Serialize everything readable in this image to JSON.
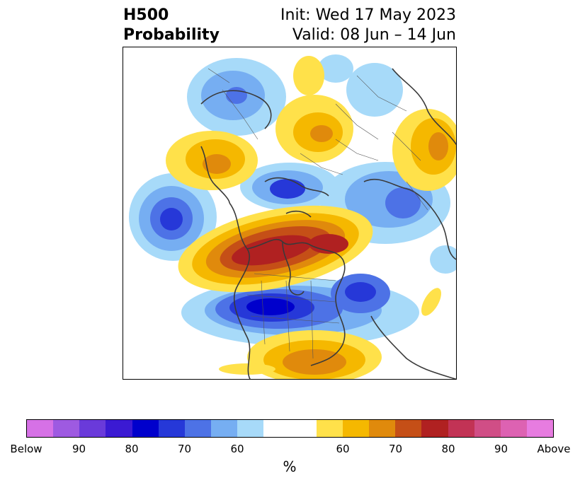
{
  "header": {
    "left_line1": "H500",
    "left_line2": "Probability",
    "right_line1": "Init: Wed 17 May 2023",
    "right_line2": "Valid: 08 Jun – 14 Jun"
  },
  "map": {
    "anomalies": [
      {
        "id": "below-north-pacific",
        "sign": "below",
        "levels": [
          60,
          70,
          80
        ]
      },
      {
        "id": "below-eastern-us",
        "sign": "below",
        "levels": [
          60,
          70,
          80,
          90
        ]
      },
      {
        "id": "below-north-atlantic",
        "sign": "below",
        "levels": [
          60,
          70
        ]
      },
      {
        "id": "below-scandinavia",
        "sign": "below",
        "levels": [
          60,
          70,
          80
        ]
      },
      {
        "id": "below-siberia",
        "sign": "below",
        "levels": [
          60,
          70
        ]
      },
      {
        "id": "below-central-asia",
        "sign": "below",
        "levels": [
          60,
          70
        ]
      },
      {
        "id": "above-canada-arctic",
        "sign": "above",
        "levels": [
          60,
          70,
          80
        ]
      },
      {
        "id": "above-gulf-of-mexico",
        "sign": "above",
        "levels": [
          60,
          70
        ]
      },
      {
        "id": "above-russia",
        "sign": "above",
        "levels": [
          60,
          70
        ]
      },
      {
        "id": "above-mongolia",
        "sign": "above",
        "levels": [
          60,
          70
        ]
      },
      {
        "id": "above-mediterranean",
        "sign": "above",
        "levels": [
          60,
          70
        ]
      },
      {
        "id": "above-east-asia",
        "sign": "above",
        "levels": [
          60,
          70
        ]
      }
    ]
  },
  "colorbar": {
    "colors": [
      "#d671e6",
      "#9e5ae1",
      "#6a3ada",
      "#3b1ad3",
      "#0000cc",
      "#2638d8",
      "#4d72e6",
      "#76aef2",
      "#a7daf9",
      "#ffffff",
      "#ffffff",
      "#ffe14a",
      "#f5b800",
      "#e08a0c",
      "#c54f17",
      "#b02121",
      "#c23355",
      "#d04e86",
      "#dd62b2",
      "#e77ce0"
    ],
    "ticks": [
      "Below",
      "90",
      "80",
      "70",
      "60",
      "60",
      "70",
      "80",
      "90",
      "Above"
    ],
    "label": "%"
  }
}
